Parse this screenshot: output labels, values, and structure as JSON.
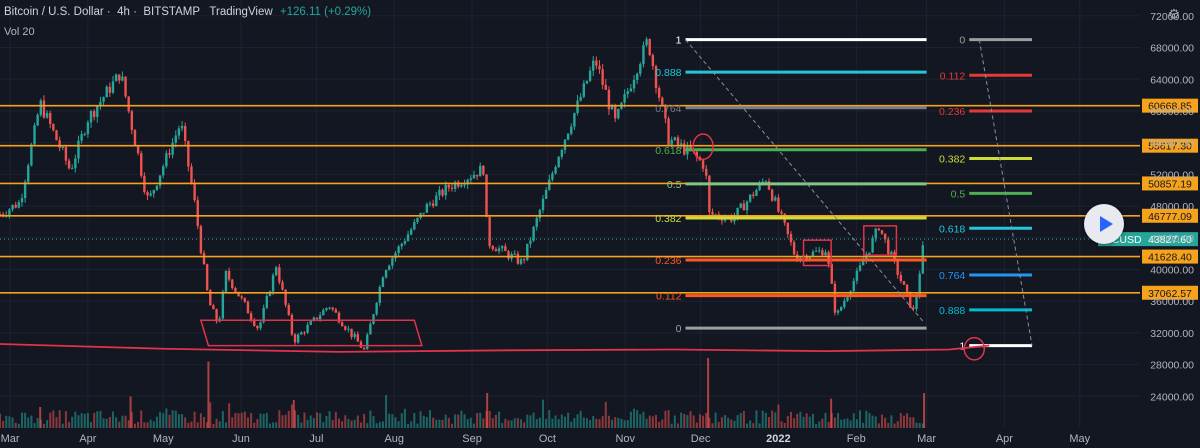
{
  "header": {
    "title": "Bitcoin / U.S. Dollar",
    "interval": "4h",
    "exchange": "BITSTAMP",
    "source": "TradingView",
    "change": "+126.11 (+0.29%)",
    "volume_label": "Vol 20"
  },
  "colors": {
    "background": "#131722",
    "grid": "#1e2230",
    "up": "#26a69a",
    "down": "#ef5350",
    "horizontal_level": "#f7a21b",
    "base_line": "#e0344a",
    "axis_text": "#b2b5be"
  },
  "chart_data": {
    "type": "candlestick",
    "symbol": "BTCUSD",
    "last_price": 43827.6,
    "last_price_label": "43827.60",
    "ylim": [
      20000,
      74000
    ],
    "y_ticks": [
      24000,
      28000,
      32000,
      36000,
      40000,
      44000,
      48000,
      52000,
      56000,
      60000,
      64000,
      68000,
      72000
    ],
    "y_tick_labels": [
      "24000.00",
      "28000.00",
      "32000.00",
      "36000.00",
      "40000.00",
      "44000.00",
      "48000.00",
      "52000.00",
      "56000.00",
      "60000.00",
      "64000.00",
      "68000.00",
      "72000.00"
    ],
    "x_range": [
      "2021-02-25",
      "2022-05-25"
    ],
    "x_ticks": [
      {
        "date": "2021-03-01",
        "label": "Mar"
      },
      {
        "date": "2021-04-01",
        "label": "Apr"
      },
      {
        "date": "2021-05-01",
        "label": "May"
      },
      {
        "date": "2021-06-01",
        "label": "Jun"
      },
      {
        "date": "2021-07-01",
        "label": "Jul"
      },
      {
        "date": "2021-08-01",
        "label": "Aug"
      },
      {
        "date": "2021-09-01",
        "label": "Sep"
      },
      {
        "date": "2021-10-01",
        "label": "Oct"
      },
      {
        "date": "2021-11-01",
        "label": "Nov"
      },
      {
        "date": "2021-12-01",
        "label": "Dec"
      },
      {
        "date": "2022-01-01",
        "label": "2022"
      },
      {
        "date": "2022-02-01",
        "label": "Feb"
      },
      {
        "date": "2022-03-01",
        "label": "Mar"
      },
      {
        "date": "2022-04-01",
        "label": "Apr"
      },
      {
        "date": "2022-05-01",
        "label": "May"
      }
    ],
    "price_path": [
      [
        "2021-02-25",
        47000
      ],
      [
        "2021-03-05",
        48500
      ],
      [
        "2021-03-13",
        61000
      ],
      [
        "2021-03-25",
        52500
      ],
      [
        "2021-04-01",
        59000
      ],
      [
        "2021-04-14",
        64800
      ],
      [
        "2021-04-25",
        48500
      ],
      [
        "2021-05-08",
        58500
      ],
      [
        "2021-05-13",
        49500
      ],
      [
        "2021-05-19",
        36000
      ],
      [
        "2021-05-23",
        33000
      ],
      [
        "2021-05-26",
        39500
      ],
      [
        "2021-06-08",
        32500
      ],
      [
        "2021-06-15",
        40500
      ],
      [
        "2021-06-22",
        31000
      ],
      [
        "2021-07-06",
        35500
      ],
      [
        "2021-07-20",
        29800
      ],
      [
        "2021-07-28",
        40000
      ],
      [
        "2021-08-14",
        48000
      ],
      [
        "2021-08-23",
        50500
      ],
      [
        "2021-09-06",
        52800
      ],
      [
        "2021-09-07",
        43500
      ],
      [
        "2021-09-21",
        40800
      ],
      [
        "2021-10-06",
        55000
      ],
      [
        "2021-10-20",
        66500
      ],
      [
        "2021-10-28",
        58500
      ],
      [
        "2021-11-10",
        69000
      ],
      [
        "2021-11-18",
        56500
      ],
      [
        "2021-11-28",
        54500
      ],
      [
        "2021-12-03",
        53000
      ],
      [
        "2021-12-04",
        47000
      ],
      [
        "2021-12-14",
        46500
      ],
      [
        "2021-12-27",
        51500
      ],
      [
        "2022-01-08",
        41500
      ],
      [
        "2022-01-20",
        42500
      ],
      [
        "2022-01-24",
        34000
      ],
      [
        "2022-02-06",
        42500
      ],
      [
        "2022-02-10",
        45500
      ],
      [
        "2022-02-17",
        40000
      ],
      [
        "2022-02-24",
        34500
      ],
      [
        "2022-02-28",
        43800
      ]
    ],
    "volume_spikes": [
      [
        "2021-05-19",
        0.95
      ],
      [
        "2021-12-04",
        1.0
      ],
      [
        "2021-04-18",
        0.45
      ],
      [
        "2021-06-22",
        0.4
      ],
      [
        "2021-09-07",
        0.5
      ],
      [
        "2022-01-22",
        0.42
      ],
      [
        "2022-02-28",
        0.5
      ],
      [
        "2021-03-13",
        0.3
      ]
    ],
    "horizontal_levels": [
      {
        "value": 60668.85,
        "label": "60668.85"
      },
      {
        "value": 55617.3,
        "label": "55617.30"
      },
      {
        "value": 50857.19,
        "label": "50857.19"
      },
      {
        "value": 46777.09,
        "label": "46777.09"
      },
      {
        "value": 41628.4,
        "label": "41628.40"
      },
      {
        "value": 37062.57,
        "label": "37062.57"
      }
    ],
    "fib_inner": {
      "start_date": "2021-11-25",
      "end_date": "2022-03-01",
      "levels": [
        {
          "ratio": 1,
          "label": "1",
          "price": 69000,
          "color": "#ffffff"
        },
        {
          "ratio": 0.888,
          "label": "0.888",
          "price": 64900,
          "color": "#26c6da"
        },
        {
          "ratio": 0.764,
          "label": "0.764",
          "price": 60400,
          "color": "#787b86"
        },
        {
          "ratio": 0.618,
          "label": "0.618",
          "price": 55100,
          "color": "#4caf50"
        },
        {
          "ratio": 0.5,
          "label": "0.5",
          "price": 50800,
          "color": "#81c784"
        },
        {
          "ratio": 0.382,
          "label": "0.382",
          "price": 46500,
          "color": "#cddc39"
        },
        {
          "ratio": 0.236,
          "label": "0.236",
          "price": 41200,
          "color": "#ff5722"
        },
        {
          "ratio": 0.112,
          "label": "0.112",
          "price": 36700,
          "color": "#ff5722"
        },
        {
          "ratio": 0,
          "label": "0",
          "price": 32600,
          "color": "#9e9e9e"
        }
      ]
    },
    "fib_outer": {
      "start_date": "2022-03-18",
      "end_date": "2022-04-12",
      "levels": [
        {
          "ratio": 0,
          "label": "0",
          "price": 69000,
          "color": "#9e9e9e"
        },
        {
          "ratio": 0.112,
          "label": "0.112",
          "price": 64500,
          "color": "#e53935"
        },
        {
          "ratio": 0.236,
          "label": "0.236",
          "price": 60000,
          "color": "#e53935"
        },
        {
          "ratio": 0.382,
          "label": "0.382",
          "price": 54000,
          "color": "#cddc39"
        },
        {
          "ratio": 0.5,
          "label": "0.5",
          "price": 49600,
          "color": "#4caf50"
        },
        {
          "ratio": 0.618,
          "label": "0.618",
          "price": 45200,
          "color": "#26c6da"
        },
        {
          "ratio": 0.764,
          "label": "0.764",
          "price": 39300,
          "color": "#2196f3"
        },
        {
          "ratio": 0.888,
          "label": "0.888",
          "price": 34900,
          "color": "#00bcd4"
        },
        {
          "ratio": 1,
          "label": "1",
          "price": 30400,
          "color": "#ffffff"
        }
      ]
    },
    "base_curve": [
      [
        "2021-02-25",
        30600
      ],
      [
        "2021-05-01",
        30000
      ],
      [
        "2021-07-10",
        29600
      ],
      [
        "2021-09-15",
        29800
      ],
      [
        "2021-11-20",
        29900
      ],
      [
        "2022-01-20",
        29700
      ],
      [
        "2022-03-10",
        29900
      ],
      [
        "2022-03-26",
        30400
      ]
    ],
    "annotations": [
      {
        "shape": "parallelogram",
        "points": [
          [
            "2021-05-16",
            33600
          ],
          [
            "2021-08-09",
            33600
          ],
          [
            "2021-08-12",
            30400
          ],
          [
            "2021-05-19",
            30400
          ]
        ]
      },
      {
        "shape": "rect",
        "points": [
          [
            "2022-01-11",
            43700
          ],
          [
            "2022-01-22",
            40500
          ]
        ]
      },
      {
        "shape": "rect",
        "points": [
          [
            "2022-02-04",
            45500
          ],
          [
            "2022-02-17",
            41800
          ]
        ]
      },
      {
        "shape": "ellipse",
        "center": [
          "2021-12-02",
          55500
        ],
        "rx_days": 4,
        "ry_price": 1600
      },
      {
        "shape": "ellipse",
        "center": [
          "2022-03-20",
          30000
        ],
        "rx_days": 4,
        "ry_price": 1400
      },
      {
        "shape": "dashed-line",
        "points": [
          [
            "2021-11-25",
            69000
          ],
          [
            "2022-02-28",
            33300
          ]
        ]
      },
      {
        "shape": "dashed-line",
        "points": [
          [
            "2022-03-22",
            69000
          ],
          [
            "2022-04-12",
            30400
          ]
        ]
      }
    ]
  }
}
